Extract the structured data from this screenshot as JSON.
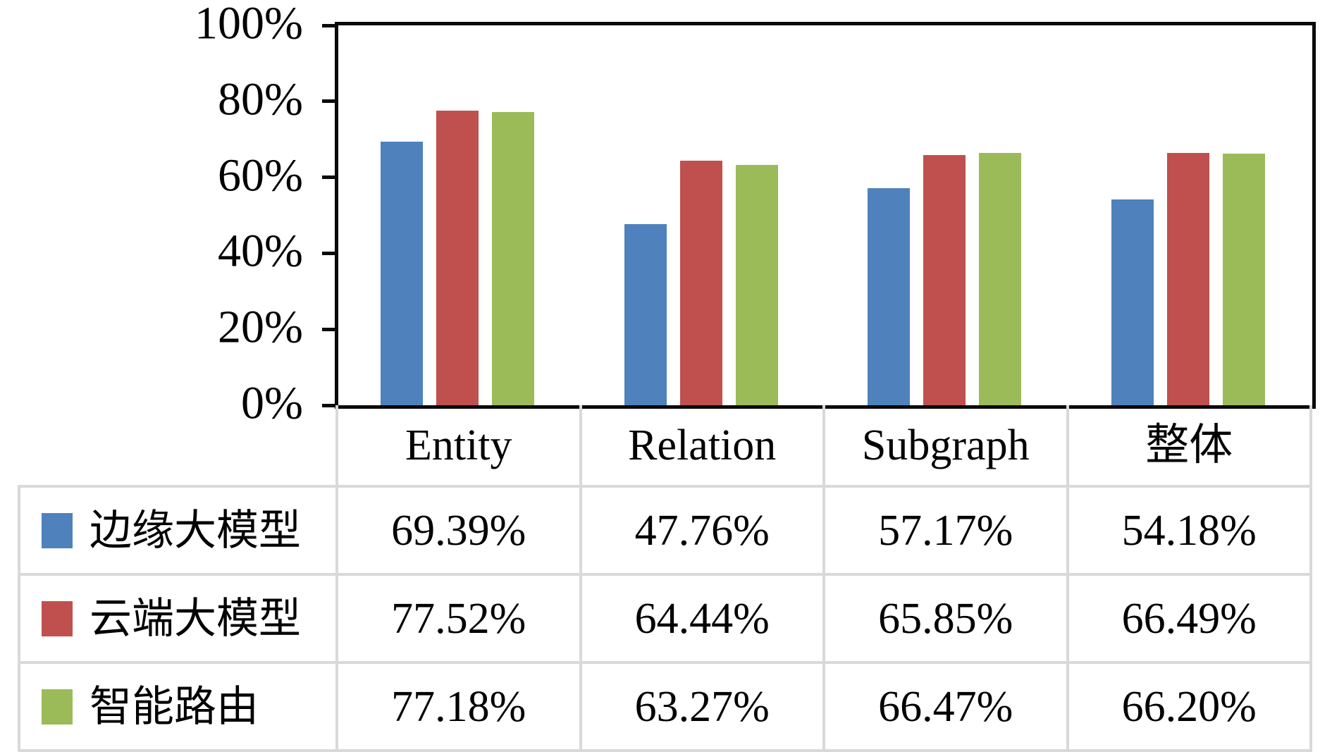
{
  "chart_data": {
    "type": "bar",
    "title": "",
    "categories": [
      "Entity",
      "Relation",
      "Subgraph",
      "整体"
    ],
    "series": [
      {
        "name": "边缘大模型",
        "color": "#4F81BD",
        "values": [
          69.39,
          47.76,
          57.17,
          54.18
        ],
        "display": [
          "69.39%",
          "47.76%",
          "57.17%",
          "54.18%"
        ]
      },
      {
        "name": "云端大模型",
        "color": "#C0504D",
        "values": [
          77.52,
          64.44,
          65.85,
          66.49
        ],
        "display": [
          "77.52%",
          "64.44%",
          "65.85%",
          "66.49%"
        ]
      },
      {
        "name": "智能路由",
        "color": "#9BBB59",
        "values": [
          77.18,
          63.27,
          66.47,
          66.2
        ],
        "display": [
          "77.18%",
          "63.27%",
          "66.47%",
          "66.20%"
        ]
      }
    ],
    "y_axis": {
      "min": 0,
      "max": 100,
      "step": 20,
      "tick_labels": [
        "0%",
        "20%",
        "40%",
        "60%",
        "80%",
        "100%"
      ]
    },
    "x_axis": {
      "label": ""
    },
    "grid": false,
    "legend_position": "data-table-left-column",
    "data_table_shown": true
  },
  "colors": {
    "axis": "#0a0a0a",
    "table_border": "#d9d9d9",
    "background": "#ffffff",
    "text": "#000000"
  }
}
